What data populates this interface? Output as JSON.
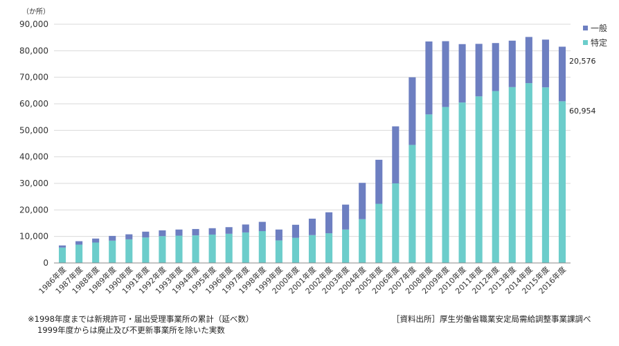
{
  "chart_data": {
    "type": "bar",
    "stacked": true,
    "unit_label": "（か所）",
    "categories": [
      "1986年度",
      "1987年度",
      "1988年度",
      "1989年度",
      "1990年度",
      "1991年度",
      "1992年度",
      "1993年度",
      "1994年度",
      "1995年度",
      "1996年度",
      "1997年度",
      "1998年度",
      "1999年度",
      "2000年度",
      "2001年度",
      "2002年度",
      "2003年度",
      "2004年度",
      "2005年度",
      "2006年度",
      "2007年度",
      "2008年度",
      "2009年度",
      "2010年度",
      "2011年度",
      "2012年度",
      "2013年度",
      "2014年度",
      "2015年度",
      "2016年度"
    ],
    "series": [
      {
        "name": "特定",
        "color": "#6ccdcb",
        "values": [
          5800,
          6900,
          7700,
          8400,
          8900,
          9600,
          10100,
          10300,
          10400,
          10700,
          11000,
          11500,
          12000,
          8500,
          9500,
          10500,
          11200,
          12600,
          16500,
          22300,
          30000,
          44500,
          56000,
          58800,
          60500,
          62800,
          64800,
          66300,
          67800,
          66200,
          60954
        ]
      },
      {
        "name": "一般",
        "color": "#6d7fc1",
        "values": [
          800,
          1300,
          1500,
          1800,
          1900,
          2200,
          2200,
          2300,
          2400,
          2400,
          2500,
          3000,
          3500,
          4100,
          4900,
          6200,
          7900,
          9400,
          13700,
          16600,
          21500,
          25500,
          27500,
          24800,
          22000,
          19800,
          18100,
          17500,
          17400,
          18000,
          20576
        ]
      }
    ],
    "ylim": [
      0,
      90000
    ],
    "yticks": [
      "0",
      "10,000",
      "20,000",
      "30,000",
      "40,000",
      "50,000",
      "60,000",
      "70,000",
      "80,000",
      "90,000"
    ],
    "ytick_values": [
      0,
      10000,
      20000,
      30000,
      40000,
      50000,
      60000,
      70000,
      80000,
      90000
    ],
    "annotations": {
      "top": "20,576",
      "bottom": "60,954"
    },
    "grid": true,
    "legend_position": "top-right"
  },
  "footnote": {
    "line1": "※1998年度までは新規許可・届出受理事業所の累計（延べ数）",
    "line2": "1999年度からは廃止及び不更新事業所を除いた実数"
  },
  "source": "［資料出所］厚生労働省職業安定局需給調整事業課調べ"
}
